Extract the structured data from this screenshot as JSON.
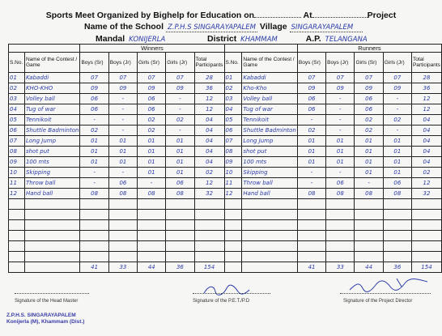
{
  "header": {
    "line1_prefix": "Sports Meet Organized by Bighelp for Education on",
    "line1_mid": "At",
    "line1_suffix": "Project",
    "school_label": "Name of the School",
    "school_value": "Z.P.H.S SINGARAYAPALEM",
    "village_label": "Village",
    "village_value": "SINGARAYAPALEM",
    "mandal_label": "Mandal",
    "mandal_value": "KONIJERLA",
    "district_label": "District",
    "district_value": "KHAMMAM",
    "ap_label": "A.P.",
    "ap_value": "TELANGANA"
  },
  "table": {
    "winners_label": "Winners",
    "runners_label": "Runners",
    "columns": [
      "S.No.",
      "Name of the Contest / Game",
      "Boys (Sr)",
      "Boys (Jr)",
      "Girls (Sr)",
      "Girls (Jr)",
      "Total Participants"
    ],
    "col_name_struck": "Contest",
    "winners_rows": [
      {
        "sno": "01",
        "game": "Kabaddi",
        "bs": "07",
        "bj": "07",
        "gs": "07",
        "gj": "07",
        "total": "28"
      },
      {
        "sno": "02",
        "game": "KHO-KHO",
        "bs": "09",
        "bj": "09",
        "gs": "09",
        "gj": "09",
        "total": "36"
      },
      {
        "sno": "03",
        "game": "Volley ball",
        "bs": "06",
        "bj": "-",
        "gs": "06",
        "gj": "-",
        "total": "12"
      },
      {
        "sno": "04",
        "game": "Tug of war",
        "bs": "06",
        "bj": "-",
        "gs": "06",
        "gj": "-",
        "total": "12"
      },
      {
        "sno": "05",
        "game": "Tennikoit",
        "bs": "-",
        "bj": "-",
        "gs": "02",
        "gj": "02",
        "total": "04"
      },
      {
        "sno": "06",
        "game": "Shuttle Badminton",
        "bs": "02",
        "bj": "-",
        "gs": "02",
        "gj": "-",
        "total": "04"
      },
      {
        "sno": "07",
        "game": "Long Jump",
        "bs": "01",
        "bj": "01",
        "gs": "01",
        "gj": "01",
        "total": "04"
      },
      {
        "sno": "08",
        "game": "shot put",
        "bs": "01",
        "bj": "01",
        "gs": "01",
        "gj": "01",
        "total": "04"
      },
      {
        "sno": "09",
        "game": "100 mts",
        "bs": "01",
        "bj": "01",
        "gs": "01",
        "gj": "01",
        "total": "04"
      },
      {
        "sno": "10",
        "game": "Skipping",
        "bs": "-",
        "bj": "-",
        "gs": "01",
        "gj": "01",
        "total": "02"
      },
      {
        "sno": "11",
        "game": "Throw ball",
        "bs": "-",
        "bj": "06",
        "gs": "-",
        "gj": "06",
        "total": "12"
      },
      {
        "sno": "12",
        "game": "Hand ball",
        "bs": "08",
        "bj": "08",
        "gs": "08",
        "gj": "08",
        "total": "32"
      }
    ],
    "runners_rows": [
      {
        "sno": "01",
        "game": "Kabaddi",
        "bs": "07",
        "bj": "07",
        "gs": "07",
        "gj": "07",
        "total": "28"
      },
      {
        "sno": "02",
        "game": "Kho-Kho",
        "bs": "09",
        "bj": "09",
        "gs": "09",
        "gj": "09",
        "total": "36"
      },
      {
        "sno": "03",
        "game": "Volley ball",
        "bs": "06",
        "bj": "-",
        "gs": "06",
        "gj": "-",
        "total": "12"
      },
      {
        "sno": "04",
        "game": "Tug of war",
        "bs": "06",
        "bj": "-",
        "gs": "06",
        "gj": "-",
        "total": "12"
      },
      {
        "sno": "05",
        "game": "Tennikoit",
        "bs": "-",
        "bj": "-",
        "gs": "02",
        "gj": "02",
        "total": "04"
      },
      {
        "sno": "06",
        "game": "Shuttle Badminton",
        "bs": "02",
        "bj": "-",
        "gs": "02",
        "gj": "-",
        "total": "04"
      },
      {
        "sno": "07",
        "game": "Long Jump",
        "bs": "01",
        "bj": "01",
        "gs": "01",
        "gj": "01",
        "total": "04"
      },
      {
        "sno": "08",
        "game": "shot put",
        "bs": "01",
        "bj": "01",
        "gs": "01",
        "gj": "01",
        "total": "04"
      },
      {
        "sno": "09",
        "game": "100 mts",
        "bs": "01",
        "bj": "01",
        "gs": "01",
        "gj": "01",
        "total": "04"
      },
      {
        "sno": "10",
        "game": "Skipping",
        "bs": "-",
        "bj": "-",
        "gs": "01",
        "gj": "01",
        "total": "02"
      },
      {
        "sno": "11",
        "game": "Throw ball",
        "bs": "-",
        "bj": "06",
        "gs": "-",
        "gj": "06",
        "total": "12"
      },
      {
        "sno": "12",
        "game": "Hand ball",
        "bs": "08",
        "bj": "08",
        "gs": "08",
        "gj": "08",
        "total": "32"
      }
    ],
    "winners_totals": {
      "bs": "41",
      "bj": "33",
      "gs": "44",
      "gj": "36",
      "total": "154"
    },
    "runners_totals": {
      "bs": "41",
      "bj": "33",
      "gs": "44",
      "gj": "36",
      "total": "154"
    }
  },
  "footer": {
    "sig_head": "Signature of the Head Master",
    "sig_pet": "Signature of the P.E.T./P.D",
    "sig_director": "Signature of the Project Director",
    "stamp_line1": "Z.P.H.S. SINGARAYAPALEM",
    "stamp_line2": "Konijerla (M), Khammam (Dist.)"
  },
  "colors": {
    "ink": "#2a3aa8",
    "print": "#111111",
    "paper": "#f6f7f5"
  }
}
